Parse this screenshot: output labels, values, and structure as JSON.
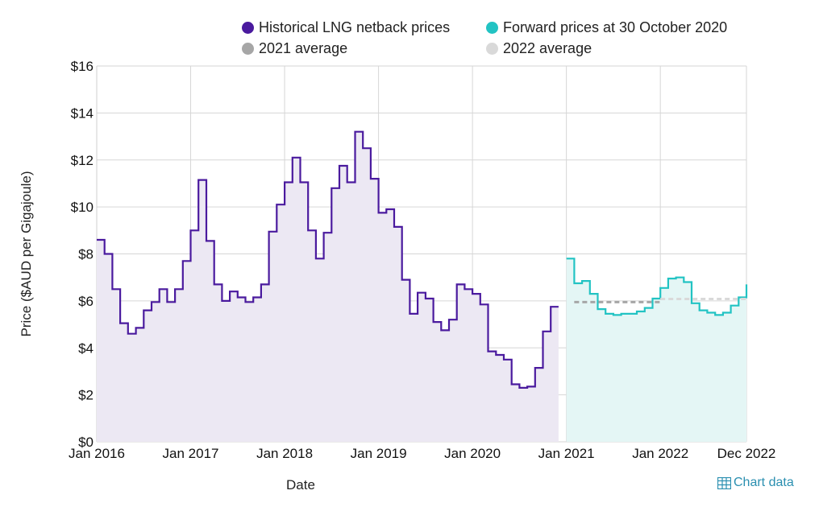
{
  "chart_data": {
    "type": "line",
    "subtype": "step",
    "xlabel": "Date",
    "ylabel": "Price ($AUD per Gigajoule)",
    "ylim": [
      0,
      16
    ],
    "yticks": [
      0,
      2,
      4,
      6,
      8,
      10,
      12,
      14,
      16
    ],
    "ytick_labels": [
      "$0",
      "$2",
      "$4",
      "$6",
      "$8",
      "$10",
      "$12",
      "$14",
      "$16"
    ],
    "xticks": [
      {
        "month_index": 0,
        "label": "Jan 2016"
      },
      {
        "month_index": 12,
        "label": "Jan 2017"
      },
      {
        "month_index": 24,
        "label": "Jan 2018"
      },
      {
        "month_index": 36,
        "label": "Jan 2019"
      },
      {
        "month_index": 48,
        "label": "Jan 2020"
      },
      {
        "month_index": 60,
        "label": "Jan 2021"
      },
      {
        "month_index": 72,
        "label": "Jan 2022"
      },
      {
        "month_index": 83,
        "label": "Dec 2022"
      }
    ],
    "x_range_month_index": [
      0,
      83
    ],
    "grid": true,
    "legend_position": "top",
    "series": [
      {
        "name": "Historical LNG netback prices",
        "color": "#4a1a9e",
        "fill": "#ece8f3",
        "start_month_index": 0,
        "values": [
          8.6,
          8.0,
          6.5,
          5.05,
          4.6,
          4.85,
          5.6,
          5.95,
          6.5,
          5.95,
          6.5,
          7.7,
          9.0,
          11.15,
          8.55,
          6.7,
          6.0,
          6.4,
          6.15,
          5.95,
          6.15,
          6.7,
          8.95,
          10.1,
          11.05,
          12.1,
          11.05,
          9.0,
          7.8,
          8.9,
          10.8,
          11.75,
          11.05,
          13.2,
          12.5,
          11.2,
          9.75,
          9.9,
          9.15,
          6.9,
          5.45,
          6.35,
          6.1,
          5.1,
          4.75,
          5.2,
          6.7,
          6.5,
          6.3,
          5.85,
          3.85,
          3.7,
          3.5,
          2.45,
          2.3,
          2.35,
          3.15,
          4.7,
          5.75
        ]
      },
      {
        "name": "Forward prices at 30 October 2020",
        "color": "#22c3c3",
        "fill": "#e4f6f5",
        "start_month_index": 60,
        "values": [
          7.8,
          6.75,
          6.85,
          6.3,
          5.65,
          5.45,
          5.4,
          5.45,
          5.45,
          5.55,
          5.7,
          6.1,
          6.55,
          6.95,
          7.0,
          6.8,
          5.9,
          5.6,
          5.5,
          5.4,
          5.5,
          5.8,
          6.15,
          6.7
        ]
      },
      {
        "name": "2021 average",
        "color": "#a6a6a6",
        "style": "dashed",
        "start_month_index": 61,
        "end_month_index": 72,
        "value": 5.95
      },
      {
        "name": "2022 average",
        "color": "#d9d9d9",
        "style": "dashed",
        "start_month_index": 72,
        "end_month_index": 83,
        "value": 6.08
      }
    ]
  },
  "footer": {
    "chart_data_link": "Chart data",
    "chart_data_icon": "table-icon"
  }
}
